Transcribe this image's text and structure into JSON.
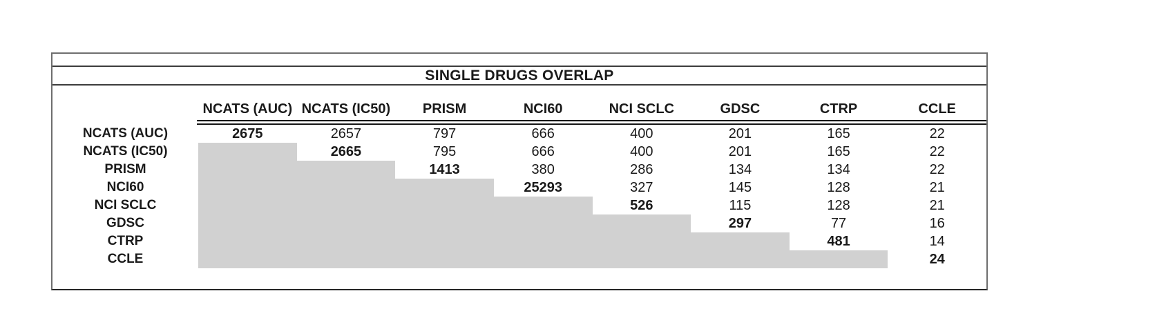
{
  "chart_data": {
    "type": "table",
    "title": "SINGLE DRUGS OVERLAP",
    "columns": [
      "NCATS (AUC)",
      "NCATS (IC50)",
      "PRISM",
      "NCI60",
      "NCI SCLC",
      "GDSC",
      "CTRP",
      "CCLE"
    ],
    "rows": [
      {
        "label": "NCATS (AUC)",
        "values": [
          2675,
          2657,
          797,
          666,
          400,
          201,
          165,
          22
        ]
      },
      {
        "label": "NCATS (IC50)",
        "values": [
          null,
          2665,
          795,
          666,
          400,
          201,
          165,
          22
        ]
      },
      {
        "label": "PRISM",
        "values": [
          null,
          null,
          1413,
          380,
          286,
          134,
          134,
          22
        ]
      },
      {
        "label": "NCI60",
        "values": [
          null,
          null,
          null,
          25293,
          327,
          145,
          128,
          21
        ]
      },
      {
        "label": "NCI SCLC",
        "values": [
          null,
          null,
          null,
          null,
          526,
          115,
          128,
          21
        ]
      },
      {
        "label": "GDSC",
        "values": [
          null,
          null,
          null,
          null,
          null,
          297,
          77,
          16
        ]
      },
      {
        "label": "CTRP",
        "values": [
          null,
          null,
          null,
          null,
          null,
          null,
          481,
          14
        ]
      },
      {
        "label": "CCLE",
        "values": [
          null,
          null,
          null,
          null,
          null,
          null,
          null,
          24
        ]
      }
    ],
    "layout_hints": {
      "diagonal_bold": true,
      "lower_triangle_shaded": true,
      "shade_color": "#d1d1d1",
      "header_underline": "double",
      "grid": "off"
    }
  }
}
